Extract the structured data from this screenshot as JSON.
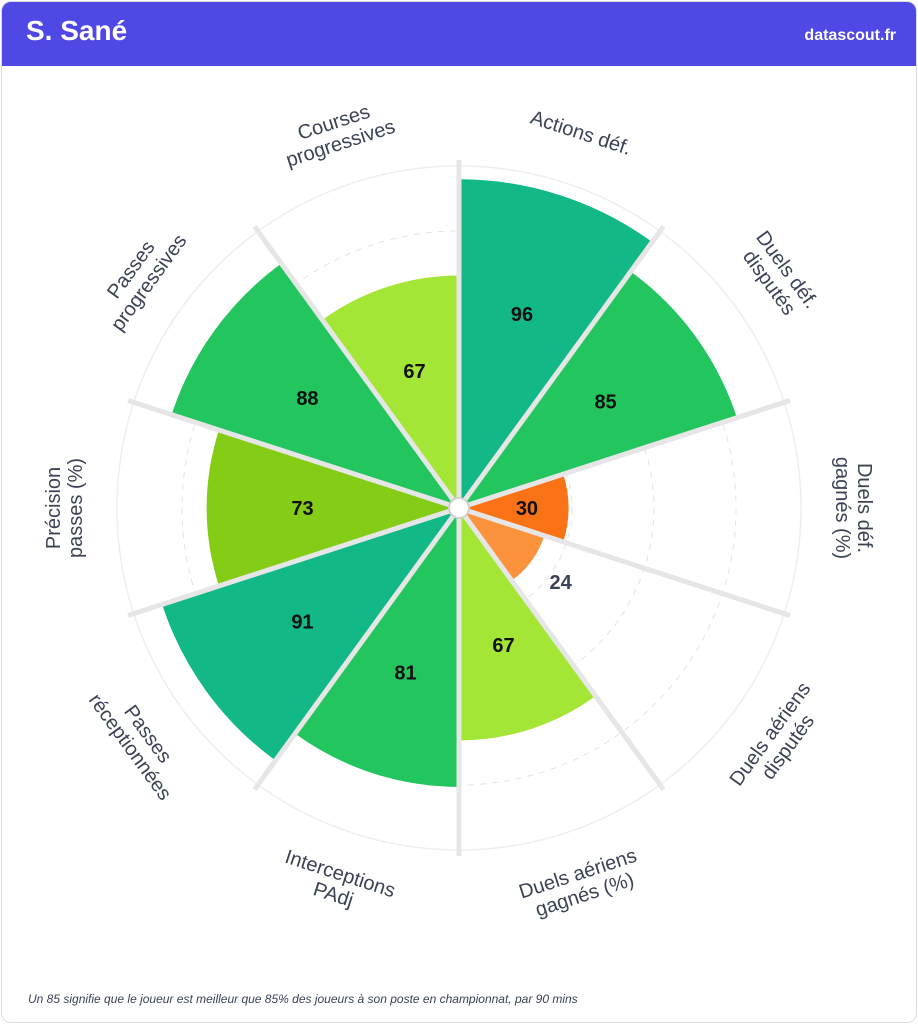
{
  "header": {
    "player_name": "S. Sané",
    "brand": "datascout.fr",
    "color": "#5048e5"
  },
  "footnote": "Un 85 signifie que le joueur est meilleur que 85% des joueurs à son poste en championnat, par 90 mins",
  "chart_data": {
    "type": "polar-bar",
    "title": "",
    "scale": [
      0,
      100
    ],
    "grid": true,
    "categories": [
      {
        "label": [
          "Actions déf."
        ],
        "value": 96,
        "color": "#12b886"
      },
      {
        "label": [
          "Duels déf.",
          "disputés"
        ],
        "value": 85,
        "color": "#22c55e"
      },
      {
        "label": [
          "Duels déf.",
          "gagnés (%)"
        ],
        "value": 30,
        "color": "#f97316"
      },
      {
        "label": [
          "Duels aériens",
          "disputés"
        ],
        "value": 24,
        "color": "#fb923c"
      },
      {
        "label": [
          "Duels aériens",
          "gagnés (%)"
        ],
        "value": 67,
        "color": "#a3e635"
      },
      {
        "label": [
          "Interceptions",
          "PAdj"
        ],
        "value": 81,
        "color": "#22c55e"
      },
      {
        "label": [
          "Passes",
          "réceptionnées"
        ],
        "value": 91,
        "color": "#12b886"
      },
      {
        "label": [
          "Précision",
          "passes (%)"
        ],
        "value": 73,
        "color": "#84cc16"
      },
      {
        "label": [
          "Passes",
          "progressives"
        ],
        "value": 88,
        "color": "#22c55e"
      },
      {
        "label": [
          "Courses",
          "progressives"
        ],
        "value": 67,
        "color": "#a3e635"
      }
    ]
  }
}
